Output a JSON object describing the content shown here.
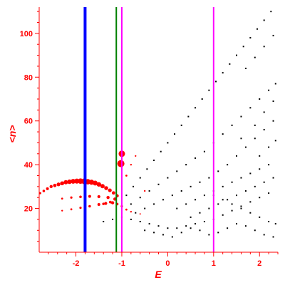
{
  "chart_data": {
    "type": "scatter",
    "title": "",
    "xlabel": "E",
    "ylabel": "<n>",
    "xlim": [
      -2.8,
      2.4
    ],
    "ylim": [
      0,
      112
    ],
    "xticks": [
      -2,
      -1,
      0,
      1,
      2
    ],
    "xtick_labels": [
      "-2",
      "-1",
      "0",
      "1",
      "2"
    ],
    "yticks": [
      20,
      40,
      60,
      80,
      100
    ],
    "ytick_labels": [
      "20",
      "40",
      "60",
      "80",
      "100"
    ],
    "grid": false,
    "legend": "none",
    "colors": {
      "axes": "#ff0000",
      "background": "#ffffff",
      "black_points": "#000000",
      "red_points": "#ff0000"
    },
    "vlines": [
      {
        "x": -1.8,
        "color": "#0000ff",
        "width": "thick"
      },
      {
        "x": -1.12,
        "color": "#008000",
        "width": "thin"
      },
      {
        "x": -1.0,
        "color": "#ff00ff",
        "width": "thin"
      },
      {
        "x": 1.0,
        "color": "#ff00ff",
        "width": "thin"
      }
    ],
    "series": [
      {
        "color": "#000000",
        "marker": "dot",
        "points": [
          [
            -0.9,
            26
          ],
          [
            -0.75,
            30
          ],
          [
            -0.6,
            34
          ],
          [
            -0.45,
            38
          ],
          [
            -0.3,
            42
          ],
          [
            -0.15,
            46
          ],
          [
            0.0,
            50
          ],
          [
            0.15,
            54
          ],
          [
            0.3,
            58
          ],
          [
            0.45,
            62
          ],
          [
            0.6,
            66
          ],
          [
            0.75,
            70
          ],
          [
            0.9,
            74
          ],
          [
            1.05,
            78
          ],
          [
            1.2,
            82
          ],
          [
            1.35,
            86
          ],
          [
            1.5,
            90
          ],
          [
            1.65,
            94
          ],
          [
            1.8,
            98
          ],
          [
            1.95,
            102
          ],
          [
            2.1,
            106
          ],
          [
            2.25,
            110
          ],
          [
            -0.8,
            22
          ],
          [
            -0.6,
            25
          ],
          [
            -0.4,
            28
          ],
          [
            -0.2,
            31
          ],
          [
            0.0,
            34
          ],
          [
            0.2,
            37
          ],
          [
            0.4,
            40
          ],
          [
            0.6,
            43
          ],
          [
            0.8,
            46
          ],
          [
            1.0,
            50
          ],
          [
            1.2,
            54
          ],
          [
            1.4,
            58
          ],
          [
            1.6,
            62
          ],
          [
            1.8,
            66
          ],
          [
            2.0,
            70
          ],
          [
            2.2,
            74
          ],
          [
            2.35,
            77
          ],
          [
            -0.7,
            18
          ],
          [
            -0.5,
            20
          ],
          [
            -0.3,
            22
          ],
          [
            -0.1,
            24
          ],
          [
            0.1,
            26
          ],
          [
            0.3,
            28
          ],
          [
            0.5,
            30
          ],
          [
            0.7,
            32
          ],
          [
            0.9,
            34
          ],
          [
            1.1,
            37
          ],
          [
            1.3,
            40
          ],
          [
            1.5,
            44
          ],
          [
            1.7,
            48
          ],
          [
            1.9,
            52
          ],
          [
            2.1,
            56
          ],
          [
            2.3,
            60
          ],
          [
            -1.4,
            14
          ],
          [
            -1.2,
            15
          ],
          [
            -1.0,
            16
          ],
          [
            -0.8,
            15
          ],
          [
            -0.6,
            14
          ],
          [
            -0.4,
            13
          ],
          [
            -0.2,
            12
          ],
          [
            0.0,
            11
          ],
          [
            0.2,
            11
          ],
          [
            0.4,
            12
          ],
          [
            0.6,
            13
          ],
          [
            0.8,
            14
          ],
          [
            1.0,
            15
          ],
          [
            1.2,
            17
          ],
          [
            1.4,
            19
          ],
          [
            1.6,
            21
          ],
          [
            1.8,
            23
          ],
          [
            2.0,
            25
          ],
          [
            2.2,
            27
          ],
          [
            -0.5,
            10
          ],
          [
            -0.3,
            9
          ],
          [
            -0.1,
            8
          ],
          [
            0.1,
            7
          ],
          [
            0.3,
            9
          ],
          [
            0.5,
            11
          ],
          [
            0.7,
            10
          ],
          [
            0.9,
            8
          ],
          [
            1.1,
            9
          ],
          [
            1.3,
            11
          ],
          [
            1.5,
            13
          ],
          [
            1.7,
            12
          ],
          [
            1.9,
            10
          ],
          [
            2.1,
            8
          ],
          [
            2.3,
            7
          ],
          [
            0.2,
            20
          ],
          [
            0.4,
            22
          ],
          [
            0.6,
            24
          ],
          [
            0.8,
            26
          ],
          [
            1.0,
            28
          ],
          [
            1.2,
            30
          ],
          [
            1.4,
            32
          ],
          [
            1.6,
            34
          ],
          [
            1.8,
            36
          ],
          [
            2.0,
            38
          ],
          [
            2.2,
            40
          ],
          [
            0.5,
            16
          ],
          [
            0.7,
            18
          ],
          [
            0.9,
            20
          ],
          [
            1.1,
            22
          ],
          [
            1.3,
            24
          ],
          [
            1.5,
            26
          ],
          [
            1.7,
            28
          ],
          [
            1.9,
            30
          ],
          [
            2.1,
            32
          ],
          [
            2.3,
            34
          ],
          [
            1.0,
            26
          ],
          [
            1.2,
            24
          ],
          [
            1.4,
            22
          ],
          [
            1.6,
            20
          ],
          [
            1.8,
            18
          ],
          [
            2.0,
            16
          ],
          [
            2.2,
            14
          ],
          [
            2.35,
            13
          ],
          [
            1.6,
            52
          ],
          [
            1.9,
            58
          ],
          [
            2.1,
            64
          ],
          [
            2.3,
            69
          ],
          [
            1.7,
            84
          ],
          [
            1.9,
            89
          ],
          [
            2.1,
            94
          ],
          [
            2.3,
            99
          ],
          [
            2.0,
            44
          ],
          [
            2.2,
            48
          ],
          [
            2.35,
            51
          ]
        ]
      },
      {
        "color": "#ff0000",
        "marker": "circle",
        "points": [
          [
            -2.78,
            27,
            1.6
          ],
          [
            -2.7,
            28,
            1.8
          ],
          [
            -2.62,
            29,
            2.0
          ],
          [
            -2.54,
            30,
            2.2
          ],
          [
            -2.46,
            30.5,
            2.4
          ],
          [
            -2.38,
            31,
            2.6
          ],
          [
            -2.3,
            31.5,
            2.8
          ],
          [
            -2.22,
            32,
            3.0
          ],
          [
            -2.14,
            32.2,
            3.2
          ],
          [
            -2.06,
            32.4,
            3.4
          ],
          [
            -1.98,
            32.5,
            3.6
          ],
          [
            -1.9,
            32.5,
            3.8
          ],
          [
            -1.82,
            32.4,
            4.0
          ],
          [
            -1.74,
            32.2,
            3.8
          ],
          [
            -1.66,
            32,
            3.6
          ],
          [
            -1.58,
            31.6,
            3.4
          ],
          [
            -1.5,
            31,
            3.2
          ],
          [
            -1.42,
            30.2,
            3.0
          ],
          [
            -1.34,
            29.3,
            2.8
          ],
          [
            -1.26,
            28.3,
            2.6
          ],
          [
            -1.18,
            27.1,
            2.4
          ],
          [
            -1.1,
            25.8,
            2.2
          ],
          [
            -2.3,
            24.5,
            1.4
          ],
          [
            -2.1,
            25,
            1.6
          ],
          [
            -1.9,
            25.3,
            1.8
          ],
          [
            -1.7,
            25.5,
            2.0
          ],
          [
            -1.5,
            25.4,
            2.1
          ],
          [
            -1.3,
            25,
            2.2
          ],
          [
            -1.15,
            24.3,
            2.3
          ],
          [
            -2.3,
            19,
            1.2
          ],
          [
            -2.1,
            19.6,
            1.4
          ],
          [
            -1.9,
            20.3,
            1.6
          ],
          [
            -1.7,
            21,
            1.8
          ],
          [
            -1.5,
            21.8,
            2.0
          ],
          [
            -1.35,
            22.3,
            2.1
          ],
          [
            -1.2,
            22.6,
            2.2
          ],
          [
            -1.1,
            22,
            1.8
          ],
          [
            -1.0,
            21,
            1.6
          ],
          [
            -0.9,
            19.5,
            1.4
          ],
          [
            -0.8,
            18.5,
            1.2
          ],
          [
            -0.6,
            17.5,
            1.0
          ],
          [
            -1.0,
            45,
            4.5
          ],
          [
            -1.02,
            40.5,
            5.0
          ],
          [
            -0.9,
            35,
            1.4
          ],
          [
            -0.8,
            40,
            1.2
          ],
          [
            -0.7,
            44,
            1.1
          ],
          [
            -0.5,
            28,
            1.2
          ],
          [
            -1.25,
            22.9,
            1.9
          ],
          [
            -1.4,
            22.1,
            1.8
          ]
        ]
      }
    ]
  }
}
